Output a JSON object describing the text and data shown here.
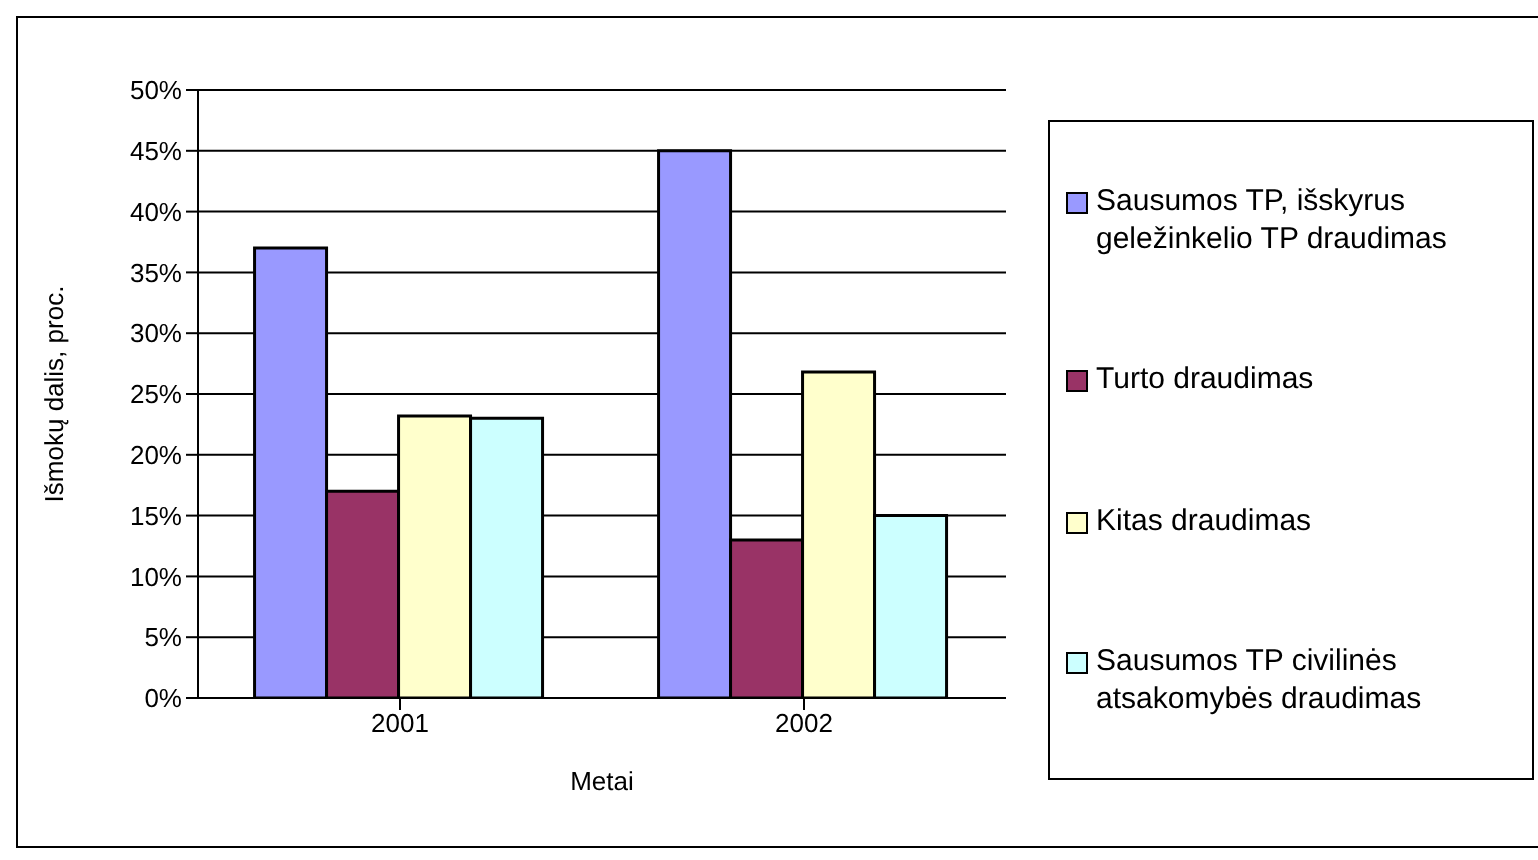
{
  "chart_data": {
    "type": "bar",
    "xlabel": "Metai",
    "ylabel": "Išmokų dalis, proc.",
    "categories": [
      "2001",
      "2002"
    ],
    "series": [
      {
        "name": "Sausumos TP, išskyrus geležinkelio TP draudimas",
        "color": "#9999ff",
        "values": [
          37,
          45
        ]
      },
      {
        "name": "Turto draudimas",
        "color": "#993366",
        "values": [
          17,
          13
        ]
      },
      {
        "name": "Kitas draudimas",
        "color": "#ffffcc",
        "values": [
          23.2,
          26.8
        ]
      },
      {
        "name": "Sausumos TP civilinės atsakomybės draudimas",
        "color": "#ccffff",
        "values": [
          23,
          15
        ]
      }
    ],
    "ylim": [
      0,
      50
    ],
    "yticks": [
      {
        "value": 0,
        "label": "0%"
      },
      {
        "value": 5,
        "label": "5%"
      },
      {
        "value": 10,
        "label": "10%"
      },
      {
        "value": 15,
        "label": "15%"
      },
      {
        "value": 20,
        "label": "20%"
      },
      {
        "value": 25,
        "label": "25%"
      },
      {
        "value": 30,
        "label": "30%"
      },
      {
        "value": 35,
        "label": "35%"
      },
      {
        "value": 40,
        "label": "40%"
      },
      {
        "value": 45,
        "label": "45%"
      },
      {
        "value": 50,
        "label": "50%"
      }
    ],
    "grid": "y",
    "legend": "right"
  }
}
